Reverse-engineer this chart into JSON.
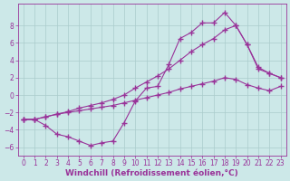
{
  "background_color": "#cce8e8",
  "grid_color": "#aacccc",
  "line_color": "#993399",
  "marker": "+",
  "markersize": 4,
  "linewidth": 0.8,
  "xlabel": "Windchill (Refroidissement éolien,°C)",
  "xlabel_fontsize": 6.5,
  "tick_fontsize": 5.5,
  "xlim": [
    -0.5,
    23.5
  ],
  "ylim": [
    -7,
    10.5
  ],
  "yticks": [
    -6,
    -4,
    -2,
    0,
    2,
    4,
    6,
    8
  ],
  "xticks": [
    0,
    1,
    2,
    3,
    4,
    5,
    6,
    7,
    8,
    9,
    10,
    11,
    12,
    13,
    14,
    15,
    16,
    17,
    18,
    19,
    20,
    21,
    22,
    23
  ],
  "line1_x": [
    0,
    1,
    2,
    3,
    4,
    5,
    6,
    7,
    8,
    9,
    10,
    11,
    12,
    13,
    14,
    15,
    16,
    17,
    18,
    19,
    20,
    21,
    22,
    23
  ],
  "line1_y": [
    -2.8,
    -2.8,
    -3.5,
    -4.5,
    -4.8,
    -5.3,
    -5.8,
    -5.5,
    -5.3,
    -3.2,
    -0.7,
    0.8,
    1.0,
    3.5,
    6.5,
    7.2,
    8.3,
    8.3,
    9.5,
    8.0,
    5.8,
    3.0,
    2.5,
    2.0
  ],
  "line2_x": [
    0,
    1,
    2,
    3,
    4,
    5,
    6,
    7,
    8,
    9,
    10,
    11,
    12,
    13,
    14,
    15,
    16,
    17,
    18,
    19,
    20,
    21,
    22,
    23
  ],
  "line2_y": [
    -2.8,
    -2.8,
    -2.5,
    -2.2,
    -1.9,
    -1.5,
    -1.2,
    -0.9,
    -0.5,
    0.0,
    0.8,
    1.5,
    2.2,
    3.0,
    4.0,
    5.0,
    5.8,
    6.5,
    7.5,
    8.0,
    5.8,
    3.2,
    2.5,
    2.0
  ],
  "line3_x": [
    0,
    1,
    2,
    3,
    4,
    5,
    6,
    7,
    8,
    9,
    10,
    11,
    12,
    13,
    14,
    15,
    16,
    17,
    18,
    19,
    20,
    21,
    22,
    23
  ],
  "line3_y": [
    -2.8,
    -2.8,
    -2.5,
    -2.2,
    -2.0,
    -1.8,
    -1.6,
    -1.4,
    -1.2,
    -0.9,
    -0.6,
    -0.3,
    0.0,
    0.3,
    0.7,
    1.0,
    1.3,
    1.6,
    2.0,
    1.8,
    1.2,
    0.8,
    0.5,
    1.0
  ]
}
